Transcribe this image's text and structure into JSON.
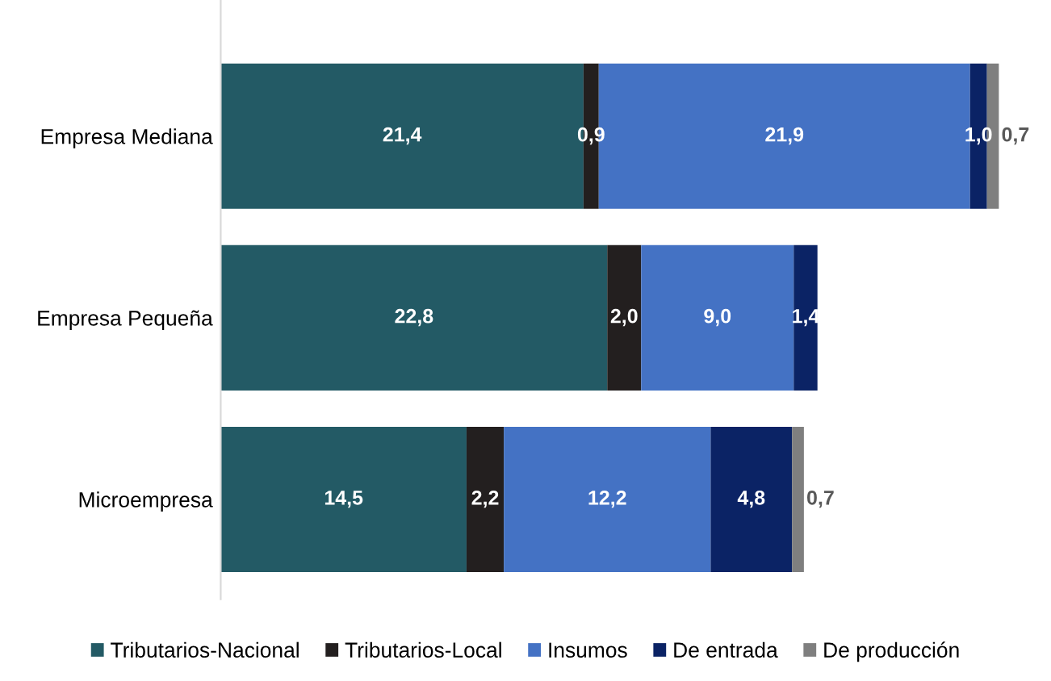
{
  "chart_data": {
    "type": "bar",
    "orientation": "horizontal",
    "stacked": true,
    "categories": [
      "Empresa Mediana",
      "Empresa Pequeña",
      "Microempresa"
    ],
    "series": [
      {
        "name": "Tributarios-Nacional",
        "color": "#235a65",
        "values": [
          21.4,
          22.8,
          14.5
        ],
        "value_labels": [
          "21,4",
          "22,8",
          "14,5"
        ]
      },
      {
        "name": "Tributarios-Local",
        "color": "#231f1f",
        "values": [
          0.9,
          2.0,
          2.2
        ],
        "value_labels": [
          "0,9",
          "2,0",
          "2,2"
        ]
      },
      {
        "name": "Insumos",
        "color": "#4472c4",
        "values": [
          21.9,
          9.0,
          12.2
        ],
        "value_labels": [
          "21,9",
          "9,0",
          "12,2"
        ]
      },
      {
        "name": "De entrada",
        "color": "#0b2365",
        "values": [
          1.0,
          1.4,
          4.8
        ],
        "value_labels": [
          "1,0",
          "1,4",
          "4,8"
        ]
      },
      {
        "name": "De producción",
        "color": "#7f7f7f",
        "values": [
          0.7,
          null,
          0.7
        ],
        "value_labels": [
          "0,7",
          null,
          "0,7"
        ]
      }
    ],
    "legend": "bottom",
    "grid": false
  }
}
